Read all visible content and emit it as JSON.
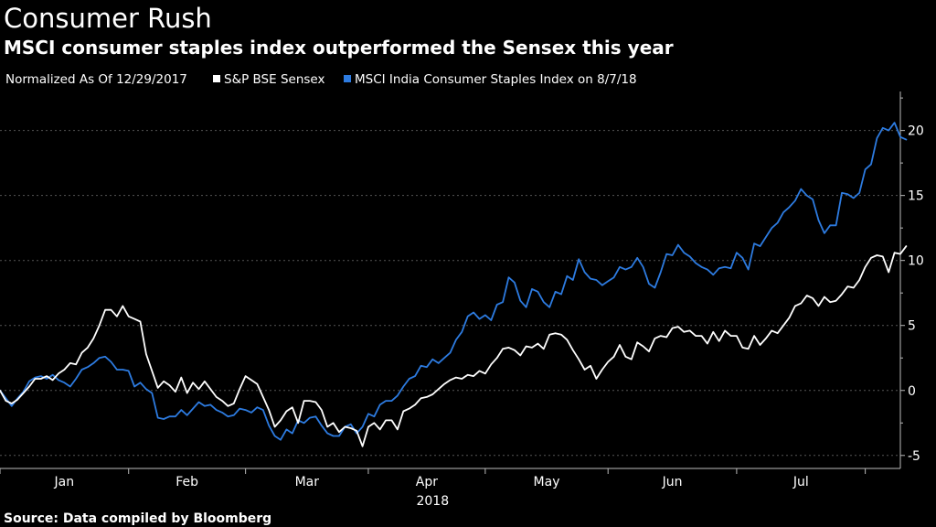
{
  "title": "Consumer Rush",
  "subtitle": "MSCI consumer staples index outperformed the Sensex this year",
  "legend": {
    "note": "Normalized As Of 12/29/2017",
    "items": [
      {
        "label": "S&P BSE Sensex",
        "color": "#ffffff"
      },
      {
        "label": "MSCI India Consumer Staples Index on 8/7/18",
        "color": "#2d7be0"
      }
    ]
  },
  "source": "Source: Data compiled by Bloomberg",
  "chart_data": {
    "type": "line",
    "title": "Consumer Rush",
    "subtitle": "MSCI consumer staples index outperformed the Sensex this year",
    "xlabel": "2018",
    "ylabel": "",
    "x_unit": "trading-day index from 12/29/2017",
    "xlim": [
      0,
      154
    ],
    "ylim": [
      -6,
      23
    ],
    "yticks": [
      -5,
      0,
      5,
      10,
      15,
      20
    ],
    "month_labels": [
      "Jan",
      "Feb",
      "Mar",
      "Apr",
      "May",
      "Jun",
      "Jul"
    ],
    "month_boundaries": [
      0,
      22,
      42,
      63,
      83,
      104,
      126,
      148
    ],
    "year_label": "2018",
    "grid": true,
    "legend_position": "top-left",
    "series": [
      {
        "name": "S&P BSE Sensex",
        "color": "#ffffff",
        "values": [
          0,
          -0.8,
          -1,
          -0.7,
          -0.2,
          0.3,
          0.9,
          0.9,
          1.1,
          0.8,
          1.3,
          1.6,
          2.1,
          2,
          2.9,
          3.3,
          4,
          5,
          6.2,
          6.2,
          5.7,
          6.5,
          5.7,
          5.5,
          5.3,
          2.8,
          1.5,
          0.2,
          0.7,
          0.4,
          -0.1,
          1,
          -0.2,
          0.6,
          0.1,
          0.7,
          0.1,
          -0.5,
          -0.8,
          -1.2,
          -1,
          0.1,
          1.1,
          0.8,
          0.5,
          -0.5,
          -1.5,
          -2.8,
          -2.3,
          -1.6,
          -1.3,
          -2.5,
          -0.8,
          -0.8,
          -0.9,
          -1.5,
          -2.8,
          -2.5,
          -3.2,
          -2.8,
          -2.9,
          -3.1,
          -4.3,
          -2.8,
          -2.5,
          -3,
          -2.3,
          -2.3,
          -3,
          -1.6,
          -1.4,
          -1.1,
          -0.6,
          -0.5,
          -0.3,
          0.1,
          0.5,
          0.8,
          1,
          0.9,
          1.2,
          1.1,
          1.5,
          1.3,
          2,
          2.5,
          3.2,
          3.3,
          3.1,
          2.7,
          3.4,
          3.3,
          3.6,
          3.2,
          4.3,
          4.4,
          4.3,
          3.9,
          3.1,
          2.4,
          1.6,
          1.9,
          0.9,
          1.6,
          2.2,
          2.6,
          3.5,
          2.6,
          2.4,
          3.7,
          3.4,
          3,
          4,
          4.2,
          4.1,
          4.8,
          4.9,
          4.5,
          4.6,
          4.2,
          4.2,
          3.6,
          4.5,
          3.8,
          4.6,
          4.2,
          4.2,
          3.3,
          3.2,
          4.2,
          3.5,
          4,
          4.6,
          4.4,
          5,
          5.6,
          6.5,
          6.7,
          7.3,
          7.1,
          6.5,
          7.2,
          6.8,
          6.9,
          7.4,
          8,
          7.9,
          8.5,
          9.5,
          10.2,
          10.4,
          10.3,
          9.1,
          10.6,
          10.5,
          11.1
        ]
      },
      {
        "name": "MSCI India Consumer Staples Index on 8/7/18",
        "color": "#2d7be0",
        "values": [
          0,
          -0.6,
          -1.2,
          -0.6,
          -0.1,
          0.7,
          1,
          1.1,
          0.9,
          1.2,
          0.8,
          0.6,
          0.3,
          0.9,
          1.6,
          1.8,
          2.1,
          2.5,
          2.6,
          2.2,
          1.6,
          1.6,
          1.5,
          0.3,
          0.6,
          0.1,
          -0.2,
          -2.1,
          -2.2,
          -2,
          -2,
          -1.5,
          -1.9,
          -1.4,
          -0.9,
          -1.2,
          -1.1,
          -1.5,
          -1.7,
          -2,
          -1.9,
          -1.4,
          -1.5,
          -1.7,
          -1.3,
          -1.5,
          -2.7,
          -3.5,
          -3.8,
          -3,
          -3.3,
          -2.3,
          -2.5,
          -2.1,
          -2,
          -2.7,
          -3.3,
          -3.5,
          -3.5,
          -2.8,
          -2.6,
          -3.3,
          -2.8,
          -1.8,
          -2,
          -1.1,
          -0.8,
          -0.8,
          -0.4,
          0.3,
          0.9,
          1.1,
          1.9,
          1.8,
          2.4,
          2.1,
          2.5,
          2.9,
          3.9,
          4.5,
          5.7,
          6,
          5.5,
          5.8,
          5.4,
          6.6,
          6.8,
          8.7,
          8.3,
          6.9,
          6.4,
          7.8,
          7.6,
          6.8,
          6.4,
          7.6,
          7.4,
          8.8,
          8.5,
          10.1,
          9.1,
          8.6,
          8.5,
          8.1,
          8.4,
          8.7,
          9.5,
          9.3,
          9.5,
          10.2,
          9.5,
          8.2,
          7.9,
          9.1,
          10.5,
          10.4,
          11.2,
          10.6,
          10.3,
          9.8,
          9.5,
          9.3,
          8.9,
          9.4,
          9.5,
          9.4,
          10.6,
          10.2,
          9.3,
          11.3,
          11.1,
          11.8,
          12.5,
          12.9,
          13.7,
          14.1,
          14.6,
          15.5,
          15,
          14.7,
          13.1,
          12.1,
          12.7,
          12.7,
          15.2,
          15.1,
          14.8,
          15.2,
          17,
          17.4,
          19.4,
          20.2,
          20,
          20.6,
          19.5,
          19.3
        ]
      }
    ]
  }
}
